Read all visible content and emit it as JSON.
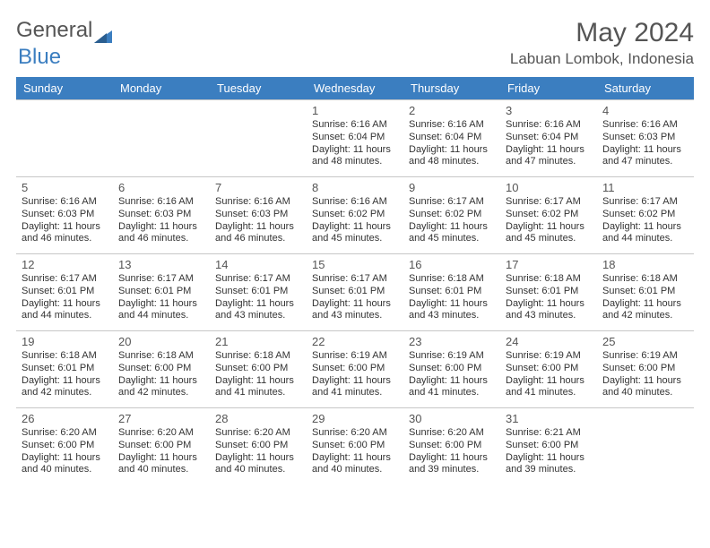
{
  "logo": {
    "part1": "General",
    "part2": "Blue"
  },
  "title": "May 2024",
  "location": "Labuan Lombok, Indonesia",
  "colors": {
    "header_bg": "#3b7ec0",
    "header_text": "#ffffff",
    "border": "#c7c7c7",
    "text": "#333333",
    "title_text": "#555555"
  },
  "day_headers": [
    "Sunday",
    "Monday",
    "Tuesday",
    "Wednesday",
    "Thursday",
    "Friday",
    "Saturday"
  ],
  "weeks": [
    [
      {
        "n": "",
        "sr": "",
        "ss": "",
        "dl": ""
      },
      {
        "n": "",
        "sr": "",
        "ss": "",
        "dl": ""
      },
      {
        "n": "",
        "sr": "",
        "ss": "",
        "dl": ""
      },
      {
        "n": "1",
        "sr": "Sunrise: 6:16 AM",
        "ss": "Sunset: 6:04 PM",
        "dl": "Daylight: 11 hours and 48 minutes."
      },
      {
        "n": "2",
        "sr": "Sunrise: 6:16 AM",
        "ss": "Sunset: 6:04 PM",
        "dl": "Daylight: 11 hours and 48 minutes."
      },
      {
        "n": "3",
        "sr": "Sunrise: 6:16 AM",
        "ss": "Sunset: 6:04 PM",
        "dl": "Daylight: 11 hours and 47 minutes."
      },
      {
        "n": "4",
        "sr": "Sunrise: 6:16 AM",
        "ss": "Sunset: 6:03 PM",
        "dl": "Daylight: 11 hours and 47 minutes."
      }
    ],
    [
      {
        "n": "5",
        "sr": "Sunrise: 6:16 AM",
        "ss": "Sunset: 6:03 PM",
        "dl": "Daylight: 11 hours and 46 minutes."
      },
      {
        "n": "6",
        "sr": "Sunrise: 6:16 AM",
        "ss": "Sunset: 6:03 PM",
        "dl": "Daylight: 11 hours and 46 minutes."
      },
      {
        "n": "7",
        "sr": "Sunrise: 6:16 AM",
        "ss": "Sunset: 6:03 PM",
        "dl": "Daylight: 11 hours and 46 minutes."
      },
      {
        "n": "8",
        "sr": "Sunrise: 6:16 AM",
        "ss": "Sunset: 6:02 PM",
        "dl": "Daylight: 11 hours and 45 minutes."
      },
      {
        "n": "9",
        "sr": "Sunrise: 6:17 AM",
        "ss": "Sunset: 6:02 PM",
        "dl": "Daylight: 11 hours and 45 minutes."
      },
      {
        "n": "10",
        "sr": "Sunrise: 6:17 AM",
        "ss": "Sunset: 6:02 PM",
        "dl": "Daylight: 11 hours and 45 minutes."
      },
      {
        "n": "11",
        "sr": "Sunrise: 6:17 AM",
        "ss": "Sunset: 6:02 PM",
        "dl": "Daylight: 11 hours and 44 minutes."
      }
    ],
    [
      {
        "n": "12",
        "sr": "Sunrise: 6:17 AM",
        "ss": "Sunset: 6:01 PM",
        "dl": "Daylight: 11 hours and 44 minutes."
      },
      {
        "n": "13",
        "sr": "Sunrise: 6:17 AM",
        "ss": "Sunset: 6:01 PM",
        "dl": "Daylight: 11 hours and 44 minutes."
      },
      {
        "n": "14",
        "sr": "Sunrise: 6:17 AM",
        "ss": "Sunset: 6:01 PM",
        "dl": "Daylight: 11 hours and 43 minutes."
      },
      {
        "n": "15",
        "sr": "Sunrise: 6:17 AM",
        "ss": "Sunset: 6:01 PM",
        "dl": "Daylight: 11 hours and 43 minutes."
      },
      {
        "n": "16",
        "sr": "Sunrise: 6:18 AM",
        "ss": "Sunset: 6:01 PM",
        "dl": "Daylight: 11 hours and 43 minutes."
      },
      {
        "n": "17",
        "sr": "Sunrise: 6:18 AM",
        "ss": "Sunset: 6:01 PM",
        "dl": "Daylight: 11 hours and 43 minutes."
      },
      {
        "n": "18",
        "sr": "Sunrise: 6:18 AM",
        "ss": "Sunset: 6:01 PM",
        "dl": "Daylight: 11 hours and 42 minutes."
      }
    ],
    [
      {
        "n": "19",
        "sr": "Sunrise: 6:18 AM",
        "ss": "Sunset: 6:01 PM",
        "dl": "Daylight: 11 hours and 42 minutes."
      },
      {
        "n": "20",
        "sr": "Sunrise: 6:18 AM",
        "ss": "Sunset: 6:00 PM",
        "dl": "Daylight: 11 hours and 42 minutes."
      },
      {
        "n": "21",
        "sr": "Sunrise: 6:18 AM",
        "ss": "Sunset: 6:00 PM",
        "dl": "Daylight: 11 hours and 41 minutes."
      },
      {
        "n": "22",
        "sr": "Sunrise: 6:19 AM",
        "ss": "Sunset: 6:00 PM",
        "dl": "Daylight: 11 hours and 41 minutes."
      },
      {
        "n": "23",
        "sr": "Sunrise: 6:19 AM",
        "ss": "Sunset: 6:00 PM",
        "dl": "Daylight: 11 hours and 41 minutes."
      },
      {
        "n": "24",
        "sr": "Sunrise: 6:19 AM",
        "ss": "Sunset: 6:00 PM",
        "dl": "Daylight: 11 hours and 41 minutes."
      },
      {
        "n": "25",
        "sr": "Sunrise: 6:19 AM",
        "ss": "Sunset: 6:00 PM",
        "dl": "Daylight: 11 hours and 40 minutes."
      }
    ],
    [
      {
        "n": "26",
        "sr": "Sunrise: 6:20 AM",
        "ss": "Sunset: 6:00 PM",
        "dl": "Daylight: 11 hours and 40 minutes."
      },
      {
        "n": "27",
        "sr": "Sunrise: 6:20 AM",
        "ss": "Sunset: 6:00 PM",
        "dl": "Daylight: 11 hours and 40 minutes."
      },
      {
        "n": "28",
        "sr": "Sunrise: 6:20 AM",
        "ss": "Sunset: 6:00 PM",
        "dl": "Daylight: 11 hours and 40 minutes."
      },
      {
        "n": "29",
        "sr": "Sunrise: 6:20 AM",
        "ss": "Sunset: 6:00 PM",
        "dl": "Daylight: 11 hours and 40 minutes."
      },
      {
        "n": "30",
        "sr": "Sunrise: 6:20 AM",
        "ss": "Sunset: 6:00 PM",
        "dl": "Daylight: 11 hours and 39 minutes."
      },
      {
        "n": "31",
        "sr": "Sunrise: 6:21 AM",
        "ss": "Sunset: 6:00 PM",
        "dl": "Daylight: 11 hours and 39 minutes."
      },
      {
        "n": "",
        "sr": "",
        "ss": "",
        "dl": ""
      }
    ]
  ]
}
